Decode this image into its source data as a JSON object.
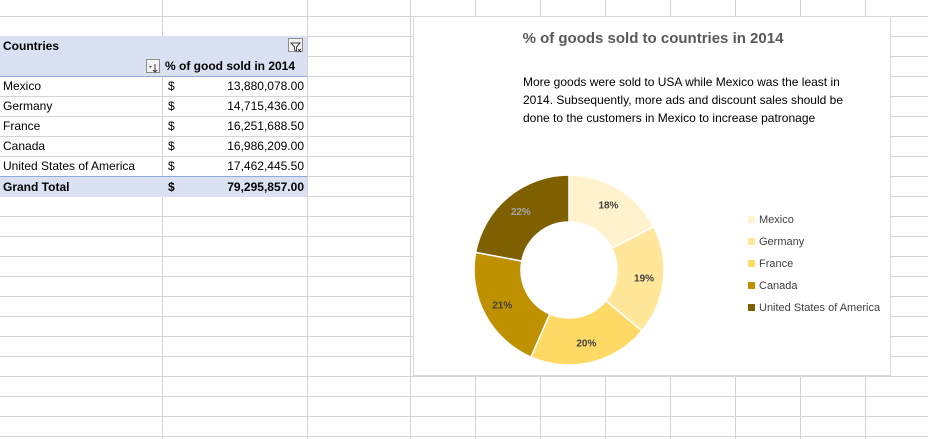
{
  "pivot": {
    "header_label": "Countries",
    "value_header": "% of good sold in 2014",
    "rows": [
      {
        "country": "Mexico",
        "currency": "$",
        "value": "13,880,078.00"
      },
      {
        "country": "Germany",
        "currency": "$",
        "value": "14,715,436.00"
      },
      {
        "country": "France",
        "currency": "$",
        "value": "16,251,688.50"
      },
      {
        "country": "Canada",
        "currency": "$",
        "value": "16,986,209.00"
      },
      {
        "country": "United States of America",
        "currency": "$",
        "value": "17,462,445.50"
      }
    ],
    "total": {
      "label": "Grand Total",
      "currency": "$",
      "value": "79,295,857.00"
    }
  },
  "chart": {
    "title": "% of goods sold to countries in 2014",
    "annotation": "More goods were sold to USA while Mexico was the least in 2014. Subsequently, more ads and discount sales should be done to the customers in Mexico to increase patronage"
  },
  "chart_data": {
    "type": "pie",
    "donut": true,
    "title": "% of goods sold to countries in 2014",
    "categories": [
      "Mexico",
      "Germany",
      "France",
      "Canada",
      "United States of America"
    ],
    "values": [
      13880078.0,
      14715436.0,
      16251688.5,
      16986209.0,
      17462445.5
    ],
    "data_labels": [
      "18%",
      "19%",
      "20%",
      "21%",
      "22%"
    ],
    "colors": [
      "#fff2cc",
      "#ffe699",
      "#ffd966",
      "#bf9000",
      "#7f6000"
    ],
    "label_colors": [
      "#404040",
      "#404040",
      "#404040",
      "#404040",
      "#a6a6a6"
    ],
    "legend_position": "right"
  }
}
